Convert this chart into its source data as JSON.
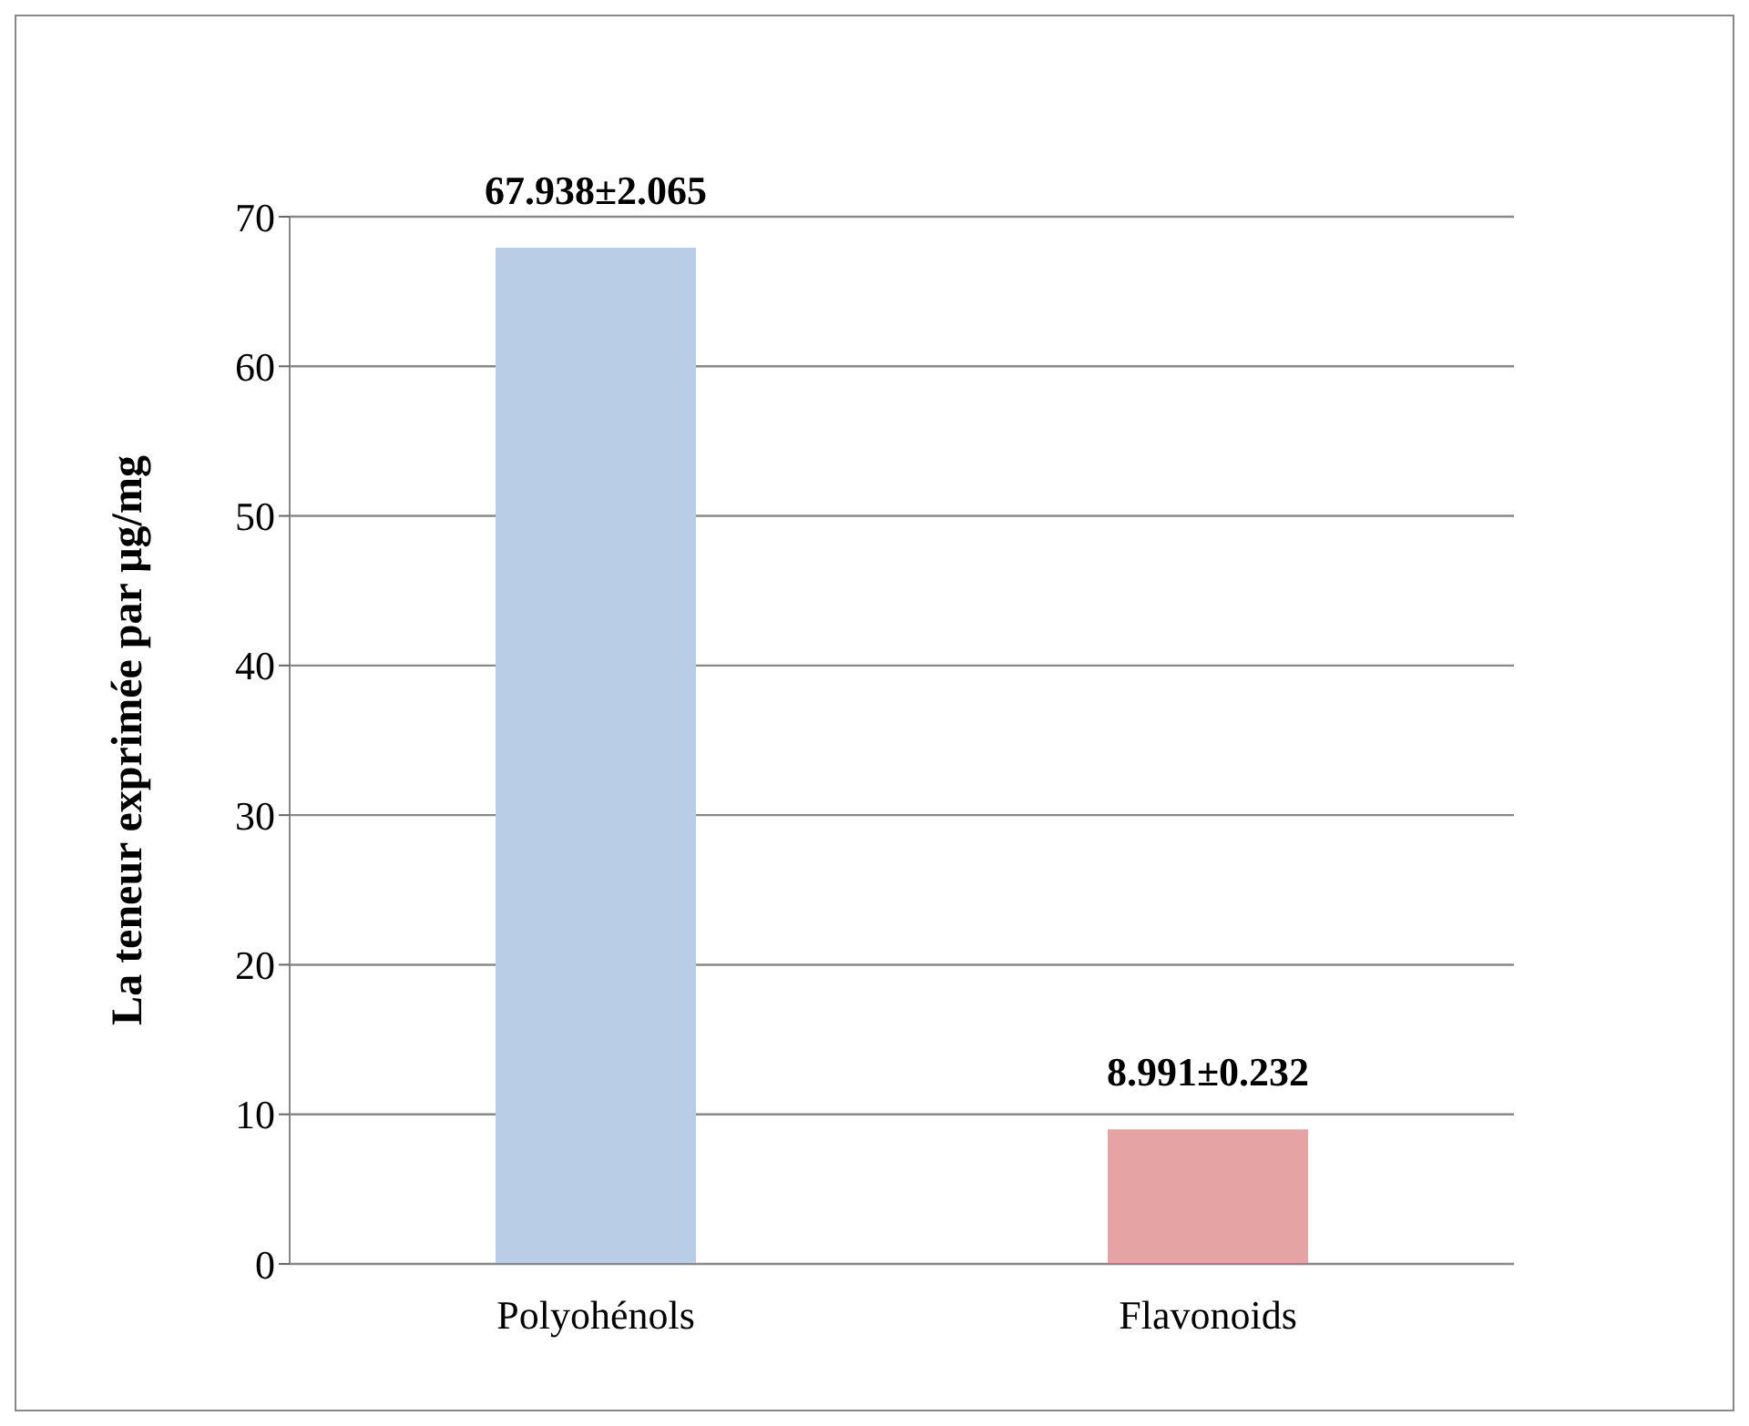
{
  "chart_data": {
    "type": "bar",
    "ylabel": "La teneur  exprimée par µg/mg",
    "categories": [
      "Polyohénols",
      "Flavonoids"
    ],
    "values": [
      67.938,
      8.991
    ],
    "colors": [
      "#b9cde6",
      "#e5a3a3"
    ],
    "value_labels": [
      "67.938±2.065",
      "8.991±0.232"
    ],
    "ylim": [
      0,
      70
    ],
    "yticks": [
      0,
      10,
      20,
      30,
      40,
      50,
      60,
      70
    ],
    "grid": "y"
  }
}
